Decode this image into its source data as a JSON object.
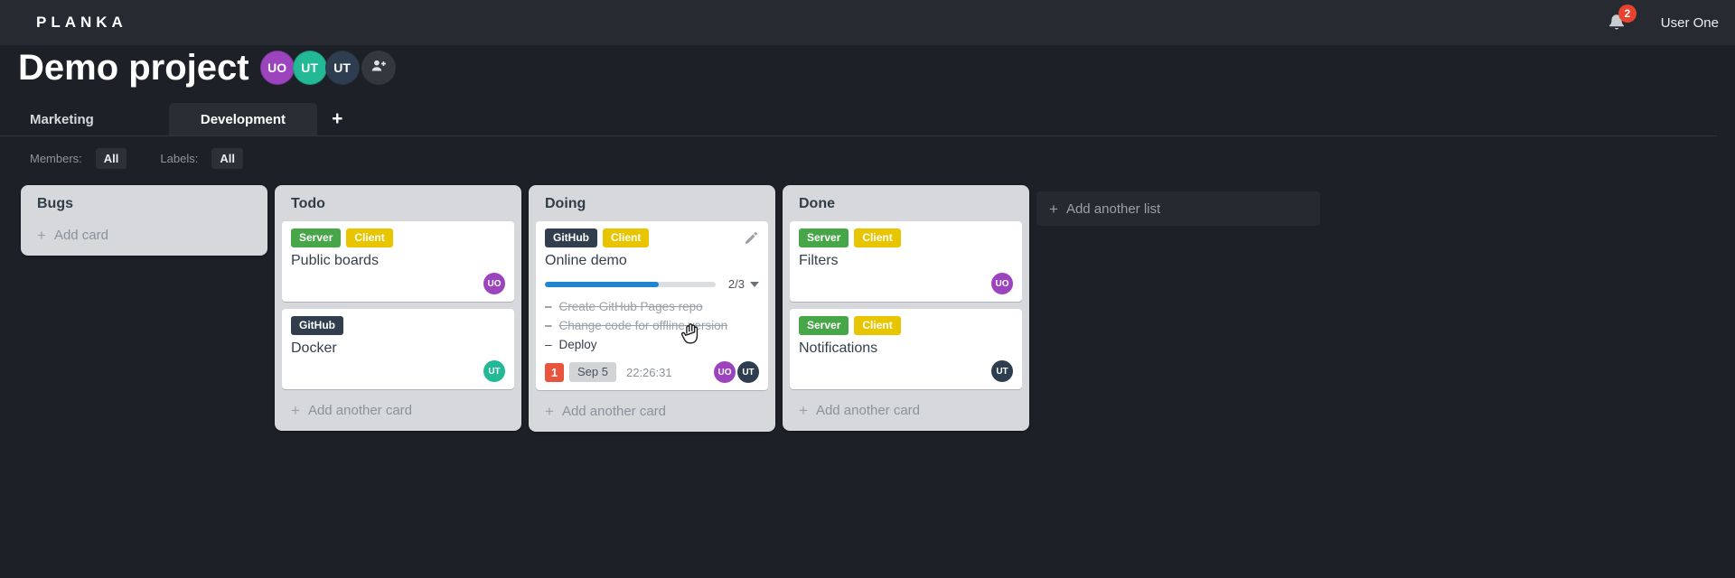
{
  "header": {
    "logo": "PLANKA",
    "user_name": "User One",
    "notification_count": "2"
  },
  "project": {
    "title": "Demo project",
    "members": [
      {
        "initials": "UO",
        "color": "#9b44bd"
      },
      {
        "initials": "UT",
        "color": "#23b896"
      },
      {
        "initials": "UT",
        "color": "#2e3e50"
      }
    ]
  },
  "tabs": {
    "items": [
      {
        "label": "Marketing",
        "active": false
      },
      {
        "label": "Development",
        "active": true
      }
    ],
    "add_button": "+"
  },
  "filters": {
    "members_label": "Members:",
    "members_value": "All",
    "labels_label": "Labels:",
    "labels_value": "All"
  },
  "board": {
    "task_marker": "–",
    "plus": "+",
    "add_list_label": "Add another list",
    "lists": [
      {
        "title": "Bugs",
        "add_label": "Add card",
        "cards": []
      },
      {
        "title": "Todo",
        "add_label": "Add another card",
        "cards": [
          {
            "title": "Public boards",
            "labels": [
              {
                "text": "Server",
                "color": "#47a647"
              },
              {
                "text": "Client",
                "color": "#e9c500"
              }
            ],
            "members": [
              {
                "initials": "UO",
                "color": "#9b44bd"
              }
            ]
          },
          {
            "title": "Docker",
            "labels": [
              {
                "text": "GitHub",
                "color": "#313e4d"
              }
            ],
            "members": [
              {
                "initials": "UT",
                "color": "#23b896"
              }
            ]
          }
        ]
      },
      {
        "title": "Doing",
        "add_label": "Add another card",
        "cards": [
          {
            "title": "Online demo",
            "labels": [
              {
                "text": "GitHub",
                "color": "#313e4d"
              },
              {
                "text": "Client",
                "color": "#e9c500"
              }
            ],
            "progress": {
              "completed": 2,
              "total": 3,
              "display": "2/3",
              "percent": 66.7,
              "bar_color": "#2185d0"
            },
            "tasks": [
              {
                "text": "Create GitHub Pages repo",
                "completed": true
              },
              {
                "text": "Change code for offline version",
                "completed": true
              },
              {
                "text": "Deploy",
                "completed": false
              }
            ],
            "notification_count": "1",
            "due_date": "Sep 5",
            "timer": "22:26:31",
            "members": [
              {
                "initials": "UO",
                "color": "#9b44bd"
              },
              {
                "initials": "UT",
                "color": "#2e3e50"
              }
            ]
          }
        ]
      },
      {
        "title": "Done",
        "add_label": "Add another card",
        "cards": [
          {
            "title": "Filters",
            "labels": [
              {
                "text": "Server",
                "color": "#47a647"
              },
              {
                "text": "Client",
                "color": "#e9c500"
              }
            ],
            "members": [
              {
                "initials": "UO",
                "color": "#9b44bd"
              }
            ]
          },
          {
            "title": "Notifications",
            "labels": [
              {
                "text": "Server",
                "color": "#47a647"
              },
              {
                "text": "Client",
                "color": "#e9c500"
              }
            ],
            "members": [
              {
                "initials": "UT",
                "color": "#2e3e50"
              }
            ]
          }
        ]
      }
    ]
  }
}
